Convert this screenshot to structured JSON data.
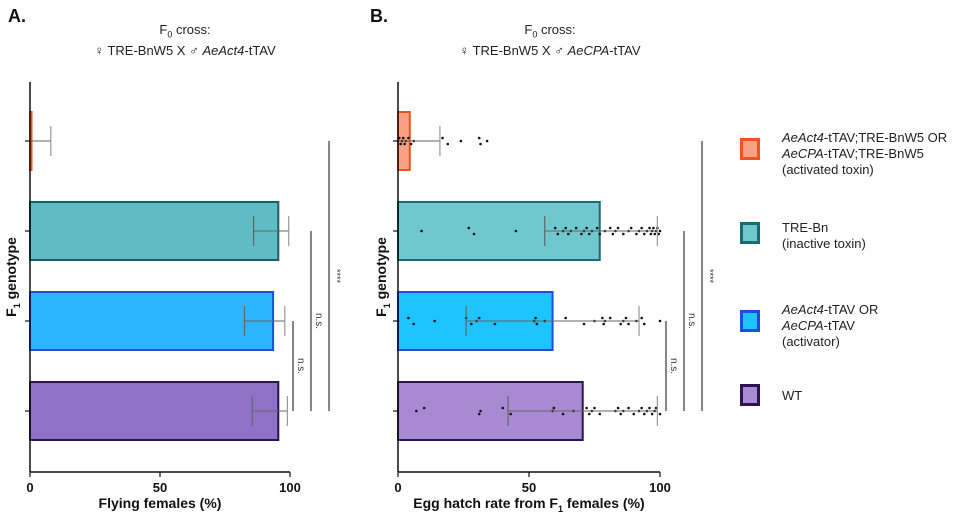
{
  "panels": [
    {
      "letter": "A.",
      "title_line1_prefix": "F",
      "title_line1_sub": "0",
      "title_line1_suffix": " cross:",
      "title_line2_plain1": "♀ TRE-BnW5 X ♂ ",
      "title_line2_italic": "AeAct4",
      "title_line2_plain2": "-tTAV"
    },
    {
      "letter": "B.",
      "title_line1_prefix": "F",
      "title_line1_sub": "0",
      "title_line1_suffix": " cross:",
      "title_line2_plain1": "♀ TRE-BnW5 X ♂ ",
      "title_line2_italic": "AeCPA",
      "title_line2_plain2": "-tTAV"
    }
  ],
  "legend": [
    {
      "lines": [
        [
          {
            "t": "AeAct4",
            "i": true
          },
          {
            "t": "-tTAV;TRE-BnW5 OR",
            "i": false
          }
        ],
        [
          {
            "t": "AeCPA",
            "i": true
          },
          {
            "t": "-tTAV;TRE-BnW5",
            "i": false
          }
        ],
        [
          {
            "t": "(activated toxin)",
            "i": false
          }
        ]
      ],
      "fill": "#F9A182",
      "stroke": "#F4511E"
    },
    {
      "lines": [
        [
          {
            "t": "TRE-Bn",
            "i": false
          }
        ],
        [
          {
            "t": "(inactive toxin)",
            "i": false
          }
        ]
      ],
      "fill": "#6FC8CE",
      "stroke": "#1A6B73"
    },
    {
      "lines": [
        [
          {
            "t": "AeAct4",
            "i": true
          },
          {
            "t": "-tTAV OR",
            "i": false
          }
        ],
        [
          {
            "t": "AeCPA",
            "i": true
          },
          {
            "t": "-tTAV",
            "i": false
          }
        ],
        [
          {
            "t": "(activator)",
            "i": false
          }
        ]
      ],
      "fill": "#1EC4FF",
      "stroke": "#1B4FE0"
    },
    {
      "lines": [
        [
          {
            "t": "WT",
            "i": false
          }
        ]
      ],
      "fill": "#A88AD2",
      "stroke": "#2A1550"
    }
  ],
  "chart_data": [
    {
      "type": "bar",
      "orientation": "horizontal",
      "title": "F0 cross: ♀ TRE-BnW5 X ♂ AeAct4-tTAV",
      "xlabel": "Flying females (%)",
      "ylabel": "F1 genotype",
      "xlim": [
        0,
        100
      ],
      "xticks": [
        "0",
        "50",
        "100"
      ],
      "xtick_values": [
        0,
        50,
        100
      ],
      "categories": [
        "activated toxin",
        "inactive toxin (TRE-Bn)",
        "activator",
        "WT"
      ],
      "values": [
        0.5,
        95.5,
        93.5,
        95.5
      ],
      "error_low": [
        0,
        86,
        82.5,
        85.5
      ],
      "error_high": [
        8,
        99.5,
        98,
        99
      ],
      "fills": [
        "#F9A182",
        "#60BCC4",
        "#2DB4FF",
        "#8F72C7"
      ],
      "strokes": [
        "#F4511E",
        "#1A5F66",
        "#1B4FE0",
        "#2A1550"
      ],
      "points": [
        [],
        [],
        [],
        []
      ],
      "significance": [
        {
          "from": 2,
          "to": 3,
          "label": "n.s."
        },
        {
          "from": 1,
          "to": 3,
          "label": "n.s."
        },
        {
          "from": 0,
          "to": 3,
          "label": "****"
        }
      ]
    },
    {
      "type": "bar",
      "orientation": "horizontal",
      "title": "F0 cross: ♀ TRE-BnW5 X ♂ AeCPA-tTAV",
      "xlabel": "Egg hatch rate from F1 females (%)",
      "ylabel": "F1 genotype",
      "xlim": [
        0,
        100
      ],
      "xticks": [
        "0",
        "50",
        "100"
      ],
      "xtick_values": [
        0,
        50,
        100
      ],
      "categories": [
        "activated toxin",
        "inactive toxin (TRE-Bn)",
        "activator",
        "WT"
      ],
      "values": [
        4.5,
        77,
        59,
        70.5
      ],
      "error_low": [
        0,
        56,
        26,
        42
      ],
      "error_high": [
        16,
        99,
        92,
        99
      ],
      "fills": [
        "#F9A182",
        "#6FC8CE",
        "#1EC4FF",
        "#A88AD2"
      ],
      "strokes": [
        "#F4511E",
        "#1A6B73",
        "#1B4FE0",
        "#2A1550"
      ],
      "points": [
        [
          0,
          0.5,
          1,
          1.5,
          2,
          2.5,
          3,
          4,
          5,
          6,
          17,
          19,
          24,
          31,
          31.5,
          34
        ],
        [
          9,
          27,
          29,
          45,
          60,
          61,
          63,
          64,
          65,
          66,
          68,
          70,
          71,
          72,
          73,
          74,
          76,
          77,
          79,
          81,
          82,
          83,
          84,
          86,
          88,
          89,
          91,
          92,
          93,
          94,
          95,
          96,
          96.5,
          97,
          97.5,
          98,
          98.5,
          99,
          99.5,
          100
        ],
        [
          0,
          4,
          6,
          14,
          26,
          28,
          30,
          31,
          37,
          52,
          52.5,
          53,
          56,
          64,
          71,
          75,
          78,
          78.5,
          79,
          81,
          85,
          86,
          87,
          88,
          91,
          93,
          94,
          100
        ],
        [
          7,
          10,
          31,
          31.5,
          40,
          43,
          59,
          59.5,
          63,
          67,
          72,
          73,
          74,
          75,
          77,
          83,
          84,
          85,
          86,
          88,
          90,
          92,
          93,
          94,
          95,
          96,
          97,
          98,
          98.5,
          100
        ]
      ],
      "significance": [
        {
          "from": 2,
          "to": 3,
          "label": "n.s."
        },
        {
          "from": 1,
          "to": 3,
          "label": "n.s."
        },
        {
          "from": 0,
          "to": 3,
          "label": "****"
        }
      ]
    }
  ]
}
